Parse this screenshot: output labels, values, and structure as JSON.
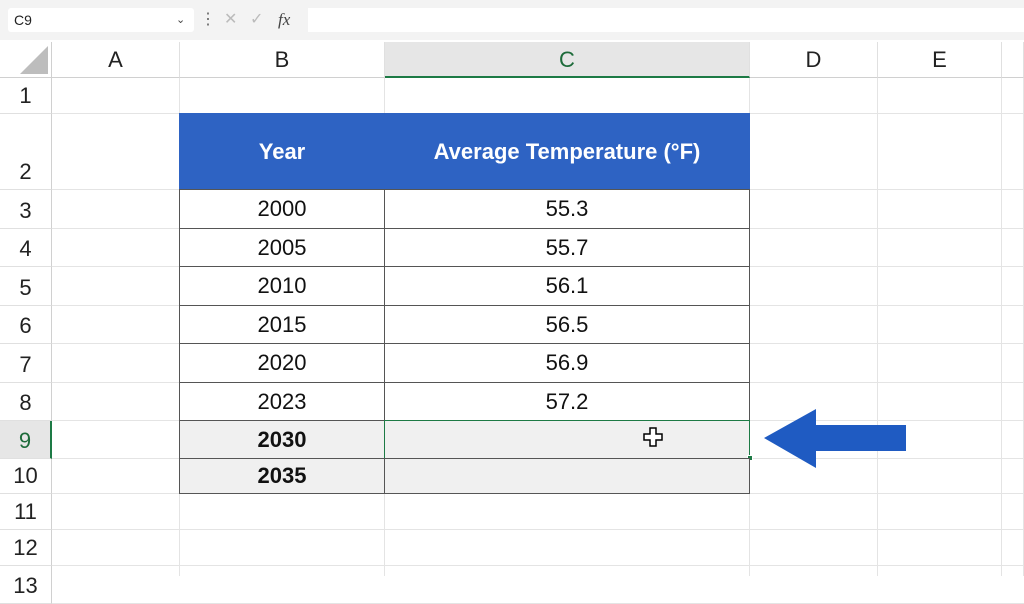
{
  "name_box": "C9",
  "formula_bar": {
    "function_label": "fx"
  },
  "column_headers": [
    "A",
    "B",
    "C",
    "D",
    "E"
  ],
  "row_headers": [
    "1",
    "2",
    "3",
    "4",
    "5",
    "6",
    "7",
    "8",
    "9",
    "10",
    "11",
    "12",
    "13"
  ],
  "table": {
    "header": [
      "Year",
      "Average Temperature (°F)"
    ],
    "rows": [
      [
        "2000",
        "55.3"
      ],
      [
        "2005",
        "55.7"
      ],
      [
        "2010",
        "56.1"
      ],
      [
        "2015",
        "56.5"
      ],
      [
        "2020",
        "56.9"
      ],
      [
        "2023",
        "57.2"
      ]
    ],
    "projection_years": [
      "2030",
      "2035"
    ]
  }
}
